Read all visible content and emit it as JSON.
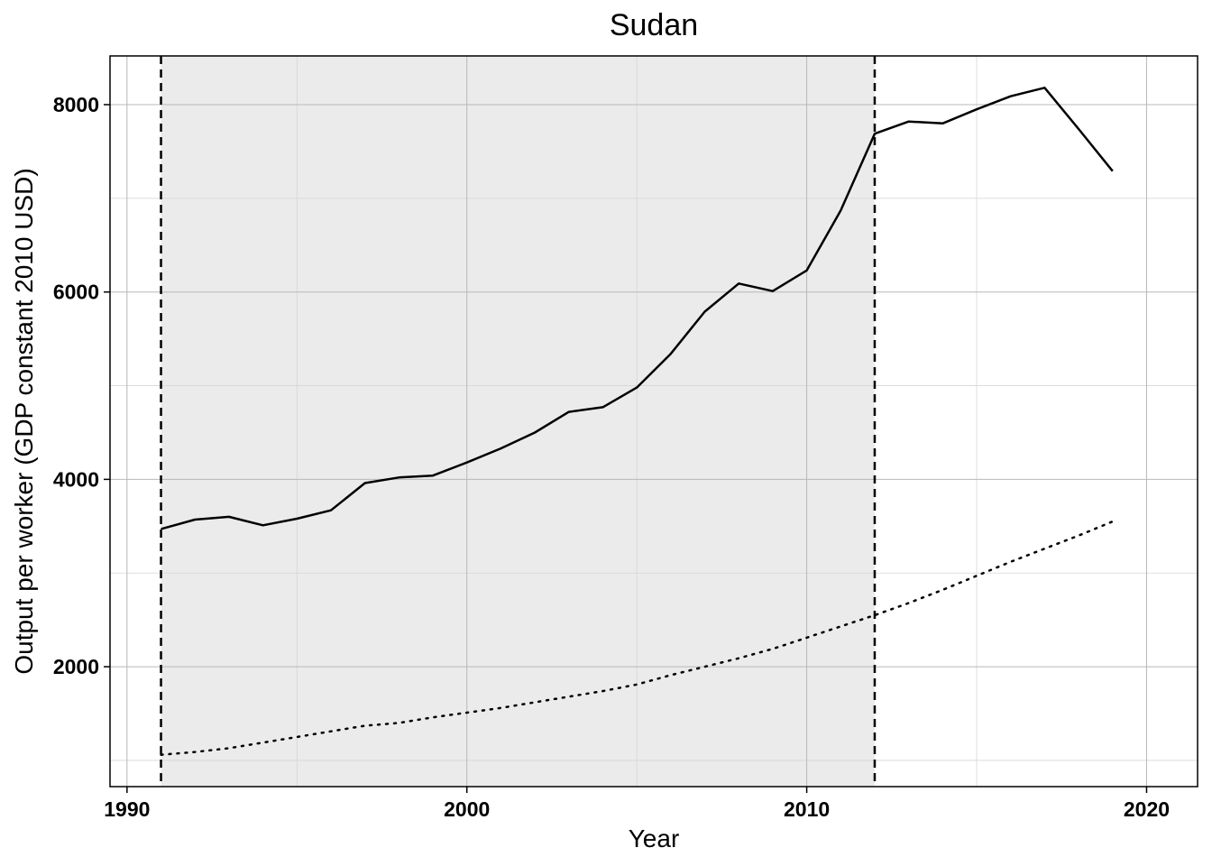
{
  "chart_data": {
    "type": "line",
    "title": "Sudan",
    "xlabel": "Year",
    "ylabel": "Output per worker (GDP constant 2010 USD)",
    "xlim": [
      1989.5,
      2021.5
    ],
    "ylim": [
      720,
      8520
    ],
    "x_ticks": [
      1990,
      2000,
      2010,
      2020
    ],
    "y_ticks": [
      2000,
      4000,
      6000,
      8000
    ],
    "x_minor_grid": [
      1995,
      2005,
      2015
    ],
    "y_minor_grid": [
      1000,
      3000,
      5000,
      7000
    ],
    "grid": true,
    "shaded_region": {
      "x_start": 1991,
      "x_end": 2012
    },
    "vertical_lines": [
      1991,
      2012
    ],
    "series": [
      {
        "style": "solid",
        "x": [
          1991,
          1992,
          1993,
          1994,
          1995,
          1996,
          1997,
          1998,
          1999,
          2000,
          2001,
          2002,
          2003,
          2004,
          2005,
          2006,
          2007,
          2008,
          2009,
          2010,
          2011,
          2012,
          2013,
          2014,
          2015,
          2016,
          2017,
          2018,
          2019
        ],
        "values": [
          3470,
          3570,
          3600,
          3510,
          3580,
          3670,
          3960,
          4020,
          4040,
          4180,
          4330,
          4500,
          4720,
          4770,
          4980,
          5340,
          5790,
          6090,
          6010,
          6230,
          6870,
          7690,
          7820,
          7800,
          7950,
          8090,
          8180,
          7740,
          7290
        ]
      },
      {
        "style": "dotted",
        "x": [
          1991,
          1992,
          1993,
          1994,
          1995,
          1996,
          1997,
          1998,
          1999,
          2000,
          2001,
          2002,
          2003,
          2004,
          2005,
          2006,
          2007,
          2008,
          2009,
          2010,
          2011,
          2012,
          2013,
          2014,
          2015,
          2016,
          2017,
          2018,
          2019
        ],
        "values": [
          1060,
          1090,
          1130,
          1190,
          1250,
          1310,
          1370,
          1400,
          1460,
          1510,
          1560,
          1620,
          1680,
          1740,
          1810,
          1910,
          2000,
          2090,
          2190,
          2310,
          2430,
          2550,
          2680,
          2820,
          2970,
          3120,
          3260,
          3400,
          3550
        ]
      }
    ]
  }
}
